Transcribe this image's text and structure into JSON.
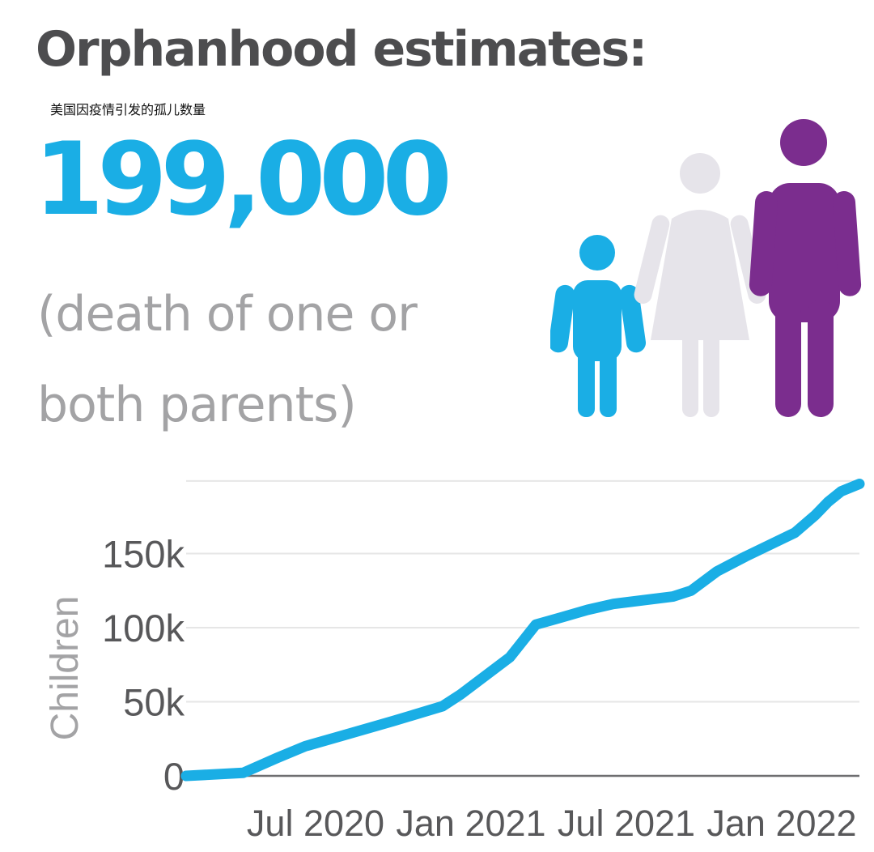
{
  "header": {
    "title": "Orphanhood estimates:",
    "subtitle_cn": "美国因疫情引发的孤儿数量",
    "big_number": "199,000",
    "caption_line1": "(death of one or",
    "caption_line2": "both parents)"
  },
  "figures": {
    "icons": [
      "child-figure-icon",
      "woman-figure-icon",
      "man-figure-icon"
    ],
    "colors": {
      "child": "#1aaee5",
      "woman": "#e6e4ea",
      "man": "#7b2d8e"
    }
  },
  "colors": {
    "accent": "#1aaee5",
    "title": "#4d4d4f",
    "caption": "#a3a3a5",
    "axis_text": "#58585a",
    "grid": "#e6e6e6"
  },
  "chart_data": {
    "type": "line",
    "title": "",
    "xlabel": "",
    "ylabel": "Children",
    "xlim": [
      0,
      26
    ],
    "ylim": [
      0,
      200000
    ],
    "grid": true,
    "yticks": [
      {
        "value": 0,
        "label": "0"
      },
      {
        "value": 50000,
        "label": "50k"
      },
      {
        "value": 100000,
        "label": "100k"
      },
      {
        "value": 150000,
        "label": "150k"
      }
    ],
    "xticks": [
      {
        "value": 5,
        "label": "Jul 2020"
      },
      {
        "value": 11,
        "label": "Jan 2021"
      },
      {
        "value": 17,
        "label": "Jul 2021"
      },
      {
        "value": 23,
        "label": "Jan 2022"
      }
    ],
    "series": [
      {
        "name": "Children",
        "color": "#1aaee5",
        "x": [
          0,
          2.2,
          3.5,
          4.6,
          6,
          8,
          9.9,
          10.6,
          12.5,
          13.5,
          14.5,
          15.5,
          16.5,
          18.8,
          19.5,
          20.5,
          21.6,
          23.5,
          24.3,
          24.8,
          25.3,
          26
        ],
        "y": [
          0,
          2000,
          12000,
          20000,
          27000,
          37000,
          47000,
          55000,
          80000,
          102000,
          107000,
          112000,
          116000,
          121000,
          125000,
          138000,
          148000,
          164000,
          176000,
          185000,
          192000,
          197000
        ]
      }
    ]
  }
}
